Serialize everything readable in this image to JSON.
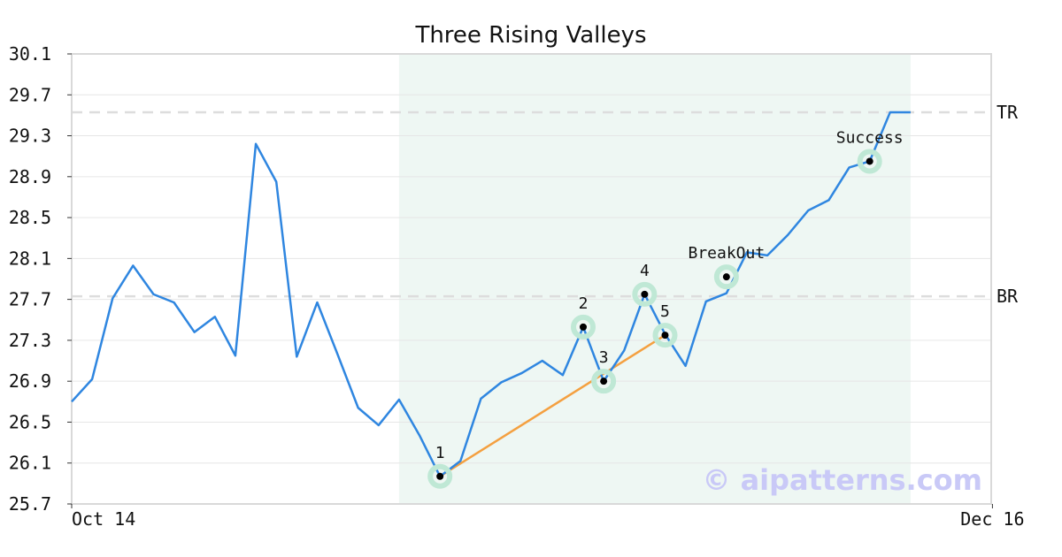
{
  "chart_data": {
    "type": "line",
    "title": "Three Rising Valleys",
    "xlabel": "",
    "ylabel": "",
    "ylim": [
      25.7,
      30.1
    ],
    "y_ticks": [
      "30.1",
      "29.7",
      "29.3",
      "28.9",
      "28.5",
      "28.1",
      "27.7",
      "27.3",
      "26.9",
      "26.5",
      "26.1",
      "25.7"
    ],
    "x_tick_labels": [
      {
        "label": "Oct 14",
        "index": 0
      },
      {
        "label": "Dec 16",
        "index": 45
      }
    ],
    "grid": true,
    "series": [
      {
        "color": "#2f86e0",
        "values": [
          26.7,
          26.92,
          27.71,
          28.03,
          27.75,
          27.67,
          27.38,
          27.53,
          27.15,
          29.22,
          28.85,
          27.14,
          27.67,
          27.16,
          26.64,
          26.47,
          26.72,
          26.37,
          25.97,
          26.12,
          26.73,
          26.89,
          26.98,
          27.1,
          26.96,
          27.43,
          26.9,
          27.2,
          27.75,
          27.36,
          27.05,
          27.68,
          27.76,
          28.16,
          28.13,
          28.33,
          28.57,
          28.67,
          28.99,
          29.05,
          29.53,
          29.53
        ]
      }
    ],
    "highlight_region": {
      "x_start": 16,
      "x_end": 41,
      "color": "#eef7f3"
    },
    "levels": [
      {
        "name": "TR",
        "value": 29.53
      },
      {
        "name": "BR",
        "value": 27.73
      }
    ],
    "trendline": {
      "color": "#f4a040",
      "from": {
        "x": 18,
        "y": 25.97
      },
      "to": {
        "x": 29,
        "y": 27.35
      }
    },
    "annotations": [
      {
        "label": "1",
        "x": 18,
        "y": 25.97
      },
      {
        "label": "2",
        "x": 25,
        "y": 27.43
      },
      {
        "label": "3",
        "x": 26,
        "y": 26.9
      },
      {
        "label": "4",
        "x": 28,
        "y": 27.75
      },
      {
        "label": "5",
        "x": 29,
        "y": 27.35
      },
      {
        "label": "BreakOut",
        "x": 32,
        "y": 27.92
      },
      {
        "label": "Success",
        "x": 39,
        "y": 29.05
      }
    ],
    "watermark": "© aipatterns.com"
  }
}
